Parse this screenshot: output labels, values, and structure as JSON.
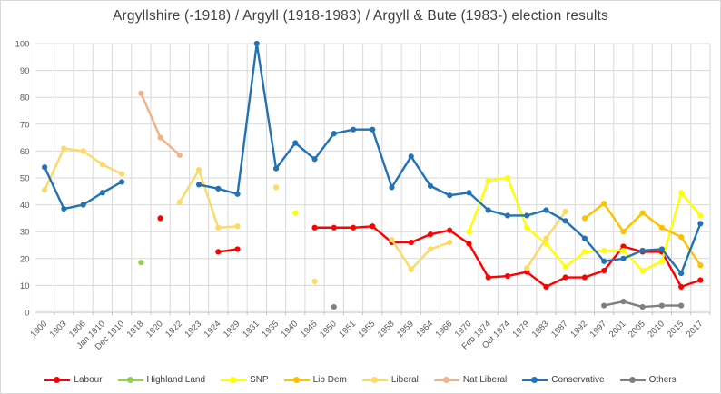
{
  "chart": {
    "title": "Argyllshire (-1918) / Argyll (1918-1983) / Argyll & Bute (1983-) election results"
  },
  "chart_data": {
    "type": "line",
    "title": "Argyllshire (-1918) / Argyll (1918-1983) / Argyll & Bute (1983-) election results",
    "xlabel": "",
    "ylabel": "",
    "grid": true,
    "legend_position": "bottom",
    "y_axis": {
      "min": 0,
      "max": 100,
      "step": 10
    },
    "categories": [
      "1900",
      "1903",
      "1906",
      "Jan 1910",
      "Dec 1910",
      "1918",
      "1920",
      "1922",
      "1923",
      "1924",
      "1929",
      "1931",
      "1935",
      "1940",
      "1945",
      "1950",
      "1951",
      "1955",
      "1958",
      "1959",
      "1964",
      "1966",
      "1970",
      "Feb 1974",
      "Oct 1974",
      "1979",
      "1983",
      "1987",
      "1992",
      "1997",
      "2001",
      "2005",
      "2010",
      "2015",
      "2017"
    ],
    "series": [
      {
        "name": "Labour",
        "color": "#FF0000",
        "values": [
          null,
          null,
          null,
          null,
          null,
          null,
          35,
          null,
          null,
          22.5,
          23.5,
          null,
          null,
          null,
          31.5,
          31.5,
          31.5,
          32,
          26,
          26,
          29,
          30.5,
          25.5,
          13,
          13.5,
          15,
          9.5,
          13,
          13,
          15.5,
          24.5,
          22.5,
          22.5,
          9.5,
          12
        ]
      },
      {
        "name": "Highland Land",
        "color": "#92D050",
        "values": [
          null,
          null,
          null,
          null,
          null,
          18.5,
          null,
          null,
          null,
          null,
          null,
          null,
          null,
          null,
          null,
          null,
          null,
          null,
          null,
          null,
          null,
          null,
          null,
          null,
          null,
          null,
          null,
          null,
          null,
          null,
          null,
          null,
          null,
          null,
          null
        ]
      },
      {
        "name": "SNP",
        "color": "#FFFF00",
        "values": [
          null,
          null,
          null,
          null,
          null,
          null,
          null,
          null,
          null,
          null,
          null,
          null,
          null,
          37,
          null,
          null,
          null,
          null,
          null,
          null,
          null,
          null,
          30,
          49,
          50,
          31.5,
          25.5,
          17,
          22.5,
          23,
          23,
          15.5,
          19,
          44.5,
          36
        ]
      },
      {
        "name": "Lib Dem",
        "color": "#FFC000",
        "values": [
          null,
          null,
          null,
          null,
          null,
          null,
          null,
          null,
          null,
          null,
          null,
          null,
          null,
          null,
          null,
          null,
          null,
          null,
          null,
          null,
          null,
          null,
          null,
          null,
          null,
          null,
          null,
          null,
          35,
          40.5,
          30,
          37,
          31.5,
          28,
          17.5
        ]
      },
      {
        "name": "Liberal",
        "color": "#FFD966",
        "values": [
          45.5,
          61,
          60,
          55,
          51.5,
          null,
          null,
          41,
          53,
          31.5,
          32,
          null,
          46.5,
          null,
          11.5,
          null,
          null,
          null,
          27,
          16,
          23.5,
          26,
          null,
          null,
          null,
          16.5,
          27.5,
          37.5,
          null,
          null,
          null,
          null,
          null,
          null,
          null
        ]
      },
      {
        "name": "Nat Liberal",
        "color": "#F4B183",
        "values": [
          null,
          null,
          null,
          null,
          null,
          81.5,
          65,
          58.5,
          null,
          null,
          null,
          null,
          null,
          null,
          null,
          null,
          null,
          null,
          null,
          null,
          null,
          null,
          null,
          null,
          null,
          null,
          null,
          null,
          null,
          null,
          null,
          null,
          null,
          null,
          null
        ]
      },
      {
        "name": "Conservative",
        "color": "#2272B5",
        "values": [
          54,
          38.5,
          40,
          44.5,
          48.5,
          null,
          null,
          null,
          47.5,
          46,
          44,
          100,
          53.5,
          63,
          57,
          66.5,
          68,
          68,
          46.5,
          58,
          47,
          43.5,
          44.5,
          38,
          36,
          36,
          38,
          34,
          27.5,
          19,
          20,
          23,
          23.5,
          14.5,
          33
        ]
      },
      {
        "name": "Others",
        "color": "#808080",
        "values": [
          null,
          null,
          null,
          null,
          null,
          null,
          null,
          null,
          null,
          null,
          null,
          null,
          null,
          null,
          null,
          2,
          null,
          null,
          null,
          null,
          null,
          null,
          null,
          null,
          null,
          null,
          null,
          null,
          null,
          2.5,
          4,
          2,
          2.5,
          2.5,
          null
        ]
      }
    ]
  }
}
